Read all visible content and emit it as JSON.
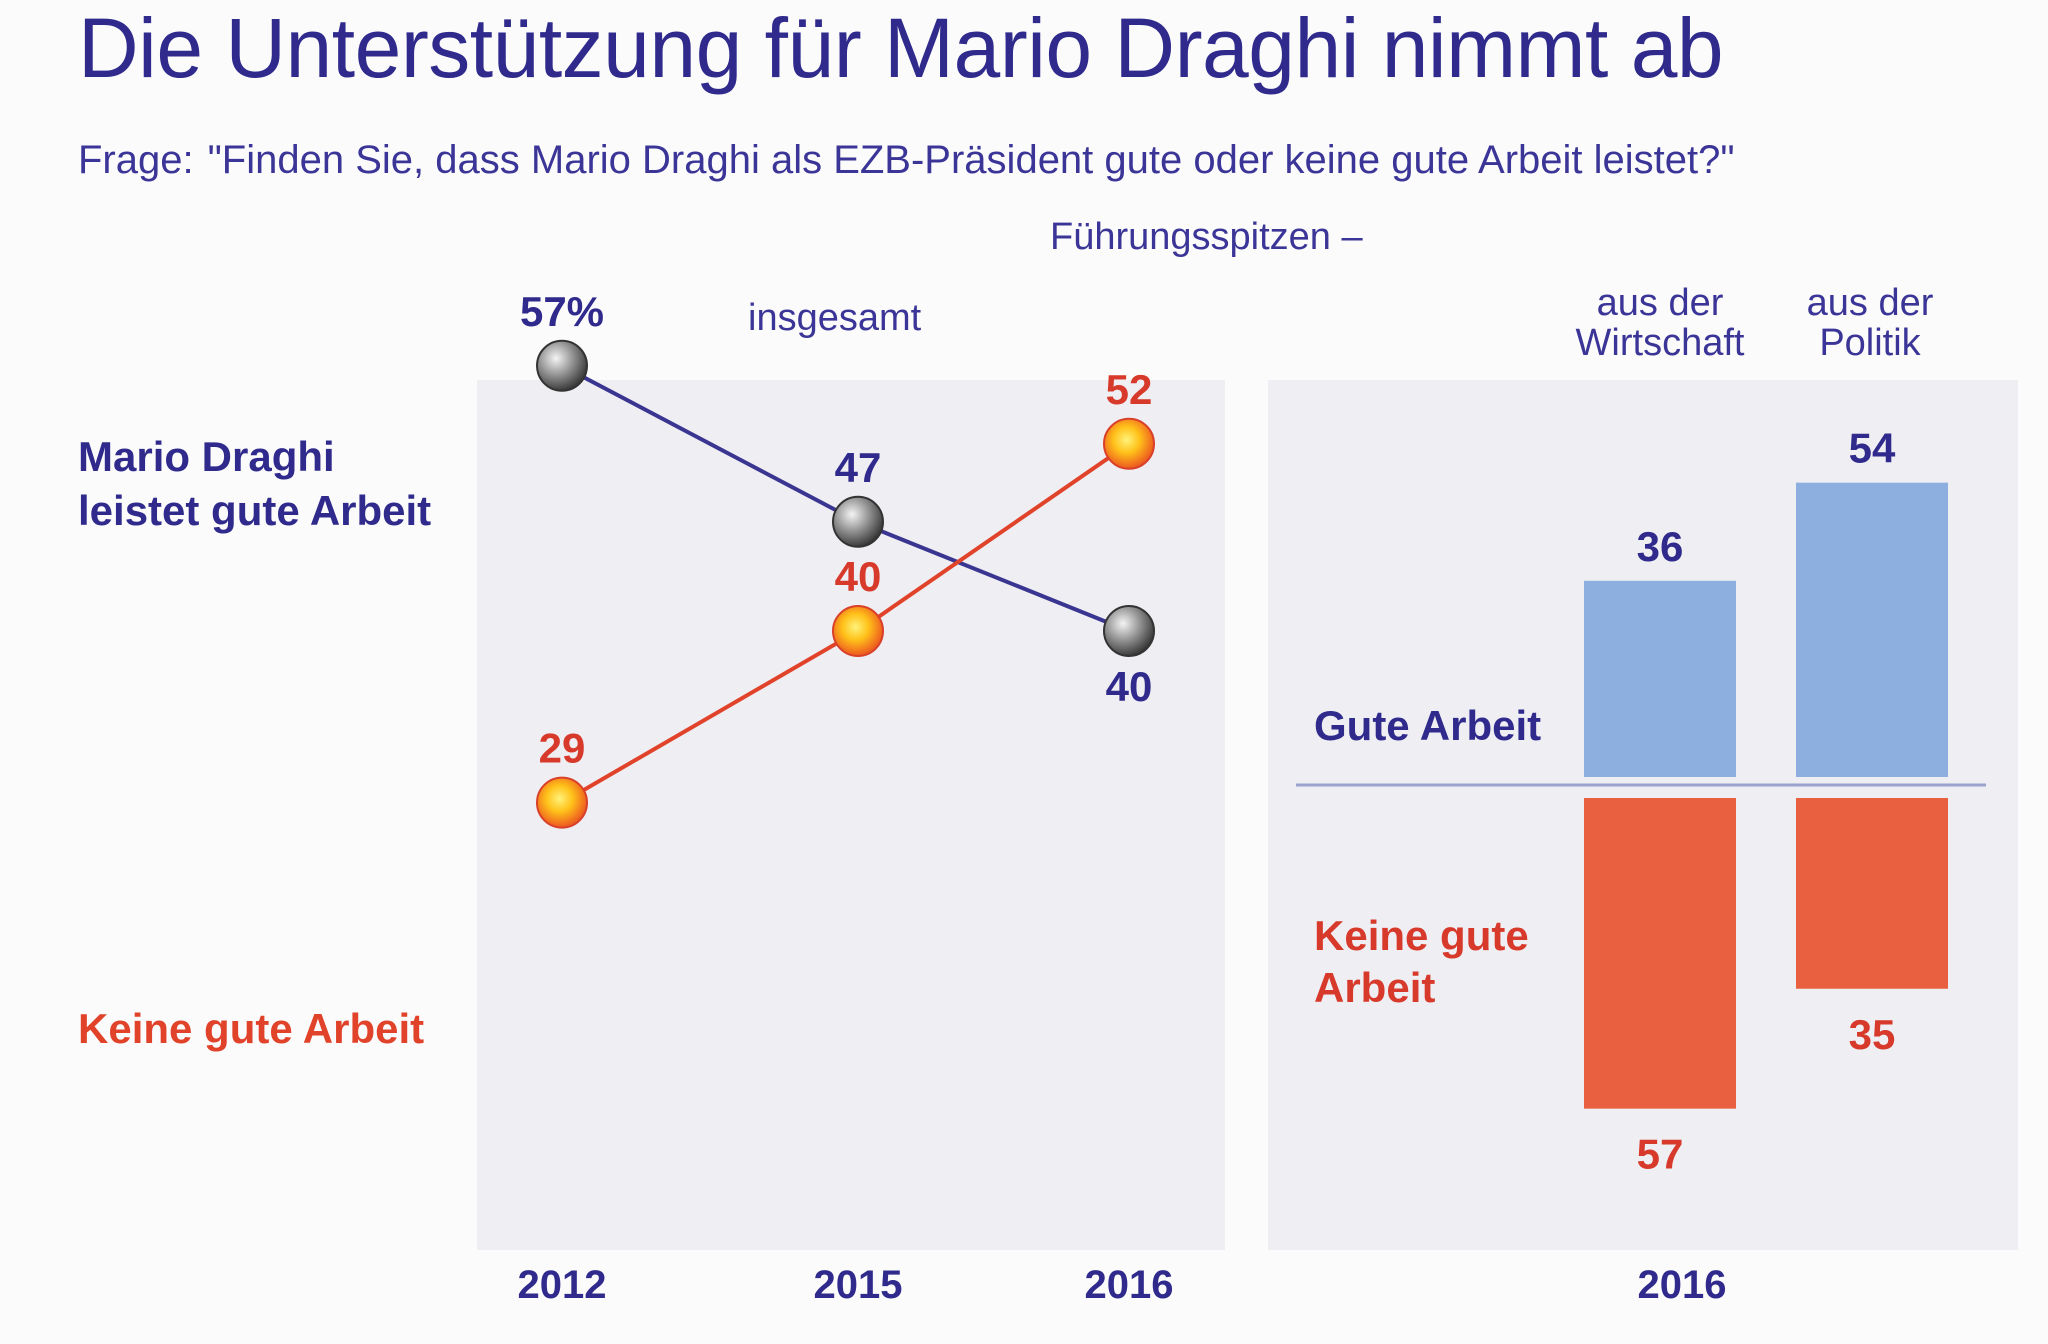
{
  "title": "Die Unterstützung für Mario Draghi nimmt ab",
  "question_label": "Frage:",
  "question_text": "\"Finden Sie, dass Mario Draghi als EZB-Präsident gute oder keine gute Arbeit leistet?\"",
  "leaders_header": "Führungsspitzen –",
  "colors": {
    "good_line": "#3a3590",
    "bad_line": "#e0432a",
    "good_bar": "#8cafdf",
    "bad_bar": "#e8603f",
    "dark_text": "#2f2a8c",
    "red_text": "#d7392a"
  },
  "chart_data": [
    {
      "type": "line",
      "title": "insgesamt",
      "x": [
        "2012",
        "2015",
        "2016"
      ],
      "ylim": [
        0,
        70
      ],
      "series": [
        {
          "name_lines": [
            "Mario Draghi",
            "leistet gute Arbeit"
          ],
          "values": [
            57,
            47,
            40
          ],
          "labels": [
            "57%",
            "47",
            "40"
          ]
        },
        {
          "name_lines": [
            "Keine gute Arbeit"
          ],
          "values": [
            29,
            40,
            52
          ],
          "labels": [
            "29",
            "40",
            "52"
          ]
        }
      ]
    },
    {
      "type": "bar",
      "x_label": "2016",
      "categories": [
        [
          "aus der",
          "Wirtschaft"
        ],
        [
          "aus der",
          "Politik"
        ]
      ],
      "series": [
        {
          "name": "Gute Arbeit",
          "values": [
            36,
            54
          ],
          "labels": [
            "36",
            "54"
          ]
        },
        {
          "name_lines": [
            "Keine gute",
            "Arbeit"
          ],
          "values": [
            57,
            35
          ],
          "labels": [
            "57",
            "35"
          ]
        }
      ]
    }
  ]
}
